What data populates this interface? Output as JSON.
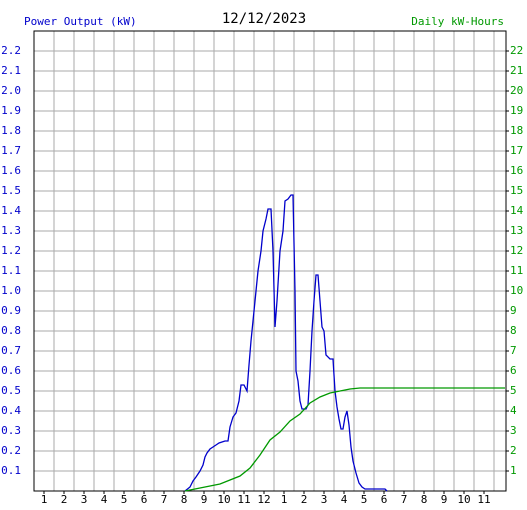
{
  "chart_data": {
    "type": "line",
    "title": "12/12/2023",
    "ylabel": "Power Output (kW)",
    "y2label": "Daily kW-Hours",
    "xlim": [
      0.5,
      24.1
    ],
    "xticks": [
      1,
      2,
      3,
      4,
      5,
      6,
      7,
      8,
      9,
      10,
      11,
      12,
      {
        "value": 13,
        "label": "1"
      },
      {
        "value": 14,
        "label": "2"
      },
      {
        "value": 15,
        "label": "3"
      },
      {
        "value": 16,
        "label": "4"
      },
      {
        "value": 17,
        "label": "5"
      },
      {
        "value": 18,
        "label": "6"
      },
      {
        "value": 19,
        "label": "7"
      },
      {
        "value": 20,
        "label": "8"
      },
      {
        "value": 21,
        "label": "9"
      },
      {
        "value": 22,
        "label": "10"
      },
      {
        "value": 23,
        "label": "11"
      }
    ],
    "ylim": [
      0,
      2.3
    ],
    "yticks": [
      0.1,
      0.2,
      0.3,
      0.4,
      0.5,
      0.6,
      0.7,
      0.8,
      0.9,
      {
        "value": 1.0,
        "label": "1.0"
      },
      1.1,
      1.2,
      1.3,
      1.4,
      1.5,
      1.6,
      1.7,
      1.8,
      1.9,
      {
        "value": 2.0,
        "label": "2.0"
      },
      2.1,
      2.2
    ],
    "y2lim": [
      0,
      23
    ],
    "y2ticks": [
      1,
      2,
      3,
      4,
      5,
      6,
      7,
      8,
      9,
      10,
      11,
      12,
      13,
      14,
      15,
      16,
      17,
      18,
      19,
      20,
      21,
      22
    ],
    "grid": true,
    "series": [
      {
        "name": "Power Output (kW)",
        "color": "#0000cc",
        "x": [
          8.05,
          8.3,
          8.45,
          8.6,
          8.8,
          8.95,
          9.05,
          9.15,
          9.3,
          9.45,
          9.6,
          9.75,
          10.05,
          10.2,
          10.3,
          10.45,
          10.6,
          10.75,
          10.85,
          11.0,
          11.15,
          11.25,
          11.35,
          11.5,
          11.6,
          11.7,
          11.85,
          11.95,
          12.1,
          12.2,
          12.35,
          12.45,
          12.55,
          12.65,
          12.8,
          12.95,
          13.05,
          13.2,
          13.35,
          13.45,
          13.55,
          13.6,
          13.7,
          13.8,
          13.9,
          14.1,
          14.2,
          14.3,
          14.4,
          14.5,
          14.6,
          14.7,
          14.8,
          14.9,
          15.0,
          15.1,
          15.3,
          15.45,
          15.55,
          15.65,
          15.75,
          15.85,
          15.95,
          16.05,
          16.15,
          16.25,
          16.35,
          16.45,
          16.6,
          16.75,
          16.9,
          17.05,
          18.05,
          18.15
        ],
        "values": [
          0,
          0.02,
          0.05,
          0.07,
          0.1,
          0.13,
          0.17,
          0.19,
          0.21,
          0.22,
          0.23,
          0.24,
          0.25,
          0.25,
          0.32,
          0.37,
          0.39,
          0.45,
          0.53,
          0.53,
          0.5,
          0.63,
          0.75,
          0.9,
          1.0,
          1.1,
          1.2,
          1.3,
          1.36,
          1.41,
          1.41,
          1.2,
          0.82,
          0.95,
          1.2,
          1.3,
          1.45,
          1.46,
          1.48,
          1.48,
          1.0,
          0.6,
          0.55,
          0.45,
          0.41,
          0.41,
          0.43,
          0.6,
          0.8,
          0.95,
          1.08,
          1.08,
          0.95,
          0.82,
          0.8,
          0.68,
          0.66,
          0.66,
          0.5,
          0.42,
          0.36,
          0.31,
          0.31,
          0.37,
          0.4,
          0.33,
          0.22,
          0.15,
          0.09,
          0.04,
          0.02,
          0.01,
          0.01,
          0
        ]
      },
      {
        "name": "Daily kW-Hours",
        "color": "#009900",
        "axis": "y2",
        "x": [
          8.05,
          8.8,
          9.8,
          10.8,
          11.3,
          11.8,
          12.3,
          12.8,
          13.3,
          13.8,
          14.3,
          14.8,
          15.3,
          15.8,
          16.3,
          16.8,
          24.05
        ],
        "values": [
          0,
          0.15,
          0.35,
          0.75,
          1.15,
          1.8,
          2.55,
          2.95,
          3.5,
          3.85,
          4.4,
          4.7,
          4.9,
          5.0,
          5.1,
          5.15,
          5.15
        ]
      }
    ]
  }
}
